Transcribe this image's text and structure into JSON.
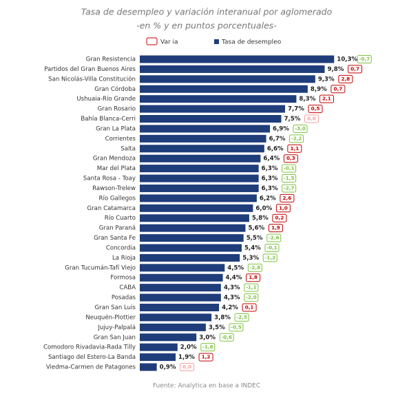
{
  "chart_data": {
    "type": "bar",
    "title": "Tasa de desempleo y variación interanual por aglomerado",
    "subtitle": "-en % y en puntos porcentuales-",
    "source": "Fuente: Analytica en base a INDEC",
    "categories": [
      "Gran Resistencia",
      "Partidos del Gran Buenos Aires",
      "San Nicolás-Villa Constitución",
      "Gran Córdoba",
      "Ushuaia-Río Grande",
      "Gran Rosario",
      "Bahía Blanca-Cerri",
      "Gran La Plata",
      "Corrientes",
      "Salta",
      "Gran Mendoza",
      "Mar del Plata",
      "Santa Rosa - Toay",
      "Rawson-Trelew",
      "Río Gallegos",
      "Gran Catamarca",
      "Río Cuarto",
      "Gran Paraná",
      "Gran Santa Fe",
      "Concordia",
      "La Rioja",
      "Gran Tucumán-Tafí Viejo",
      "Formosa",
      "CABA",
      "Posadas",
      "Gran San Luis",
      "Neuquén-Plottier",
      "Jujuy-Palpalá",
      "Gran San Juan",
      "Comodoro Rivadavia-Rada Tilly",
      "Santiago del Estero-La Banda",
      "Viedma-Carmen de Patagones"
    ],
    "series": [
      {
        "name": "Tasa de desempleo",
        "color": "#1f3d7a",
        "values": [
          10.3,
          9.8,
          9.3,
          8.9,
          8.3,
          7.7,
          7.5,
          6.9,
          6.7,
          6.6,
          6.4,
          6.3,
          6.3,
          6.3,
          6.2,
          6.0,
          5.8,
          5.6,
          5.5,
          5.4,
          5.3,
          4.5,
          4.4,
          4.3,
          4.3,
          4.2,
          3.8,
          3.5,
          3.0,
          2.0,
          1.9,
          0.9
        ],
        "value_labels": [
          "10,3%",
          "9,8%",
          "9,3%",
          "8,9%",
          "8,3%",
          "7,7%",
          "7,5%",
          "6,9%",
          "6,7%",
          "6,6%",
          "6,4%",
          "6,3%",
          "6,3%",
          "6,3%",
          "6,2%",
          "6,0%",
          "5,8%",
          "5,6%",
          "5,5%",
          "5,4%",
          "5,3%",
          "4,5%",
          "4,4%",
          "4,3%",
          "4,3%",
          "4,2%",
          "3,8%",
          "3,5%",
          "3,0%",
          "2,0%",
          "1,9%",
          "0,9%"
        ]
      },
      {
        "name": "Var ia",
        "color": "#c00000",
        "colors": {
          "negative": "#7dc242",
          "positive": "#c00000",
          "zero": "#f2a0a0"
        },
        "values": [
          -0.7,
          0.7,
          2.8,
          0.7,
          2.1,
          0.5,
          0.0,
          -3.0,
          -2.2,
          1.1,
          0.3,
          -0.1,
          -1.5,
          -2.7,
          2.6,
          1.0,
          0.2,
          1.9,
          -2.6,
          -0.1,
          -1.2,
          -2.8,
          1.8,
          -1.1,
          -2.0,
          0.1,
          -2.5,
          -0.5,
          -0.6,
          -1.6,
          1.2,
          0.0
        ],
        "value_labels": [
          "-0,7",
          "0,7",
          "2,8",
          "0,7",
          "2,1",
          "0,5",
          "0,0",
          "-3,0",
          "-2,2",
          "1,1",
          "0,3",
          "-0,1",
          "-1,5",
          "-2,7",
          "2,6",
          "1,0",
          "0,2",
          "1,9",
          "-2,6",
          "-0,1",
          "-1,2",
          "-2,8",
          "1,8",
          "-1,1",
          "-2,0",
          "0,1",
          "-2,5",
          "-0,5",
          "-0,6",
          "-1,6",
          "1,2",
          "0,0"
        ]
      }
    ]
  }
}
